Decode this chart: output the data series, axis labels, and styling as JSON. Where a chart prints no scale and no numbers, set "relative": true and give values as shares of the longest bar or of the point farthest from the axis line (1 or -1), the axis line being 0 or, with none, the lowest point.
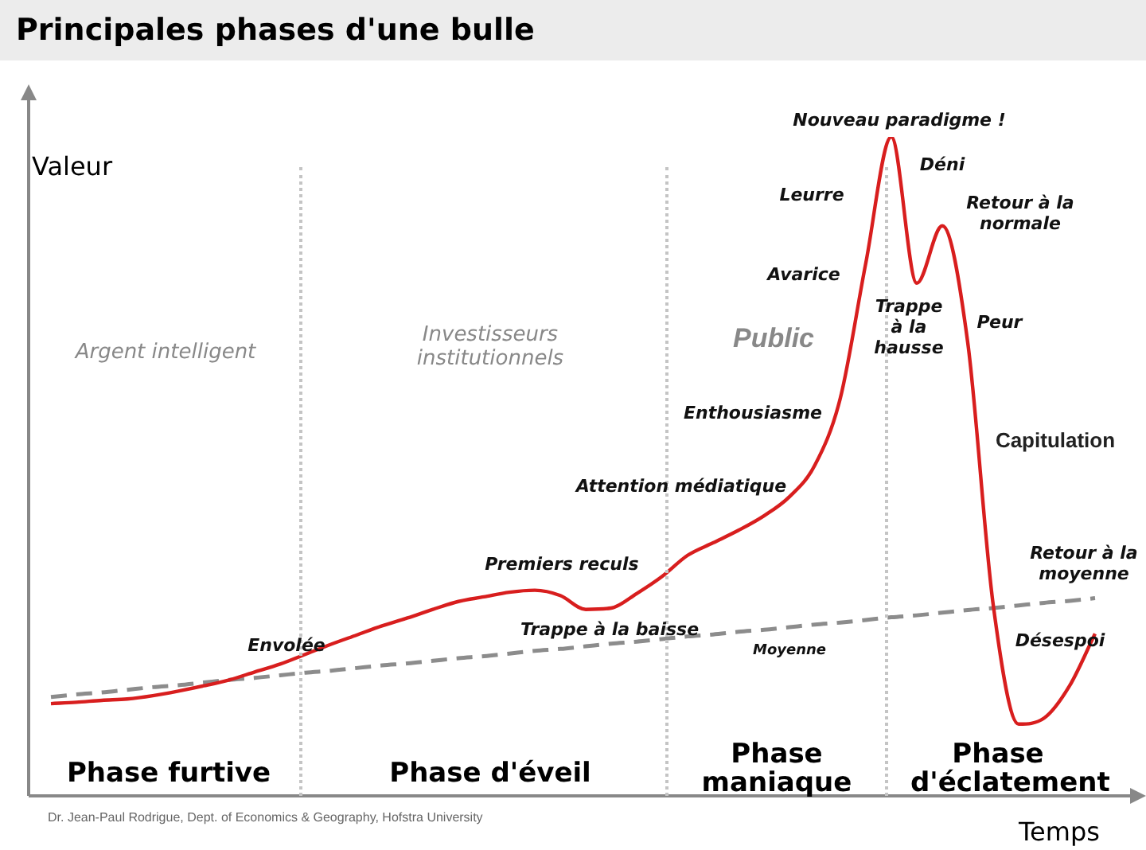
{
  "chart_data": {
    "type": "line",
    "title": "Principales phases d'une bulle",
    "xlabel": "Temps",
    "ylabel": "Valeur",
    "relative": true,
    "legend": false,
    "marker": "none",
    "categories": [
      null,
      null,
      null,
      null,
      null,
      null,
      null,
      null,
      null,
      null,
      null,
      null,
      null,
      null,
      null,
      null,
      null,
      null,
      null,
      null,
      null,
      null,
      null,
      null,
      null,
      null,
      null,
      null,
      null,
      null,
      null,
      null,
      null,
      null,
      null,
      null,
      null,
      null,
      null,
      null,
      null,
      null
    ],
    "series": [
      {
        "color": "#d81e1e",
        "line_style": "solid",
        "values": [
          0.14,
          0.142,
          0.145,
          0.147,
          0.152,
          0.159,
          0.167,
          0.176,
          0.188,
          0.2,
          0.215,
          0.23,
          0.244,
          0.258,
          0.27,
          0.283,
          0.295,
          0.302,
          0.309,
          0.312,
          0.304,
          0.283,
          0.285,
          0.307,
          0.333,
          0.365,
          0.384,
          0.403,
          0.425,
          0.454,
          0.502,
          0.604,
          0.809,
          1,
          0.778,
          0.865,
          0.688,
          0.29,
          0.109,
          0.118,
          0.167,
          0.246
        ]
      },
      {
        "name": "Moyenne",
        "color": "#8c8c8c",
        "line_style": "dashed",
        "values": [
          0.15,
          0.154,
          0.157,
          0.161,
          0.165,
          0.168,
          0.172,
          0.176,
          0.179,
          0.183,
          0.187,
          0.19,
          0.194,
          0.198,
          0.201,
          0.205,
          0.209,
          0.212,
          0.216,
          0.22,
          0.223,
          0.227,
          0.231,
          0.234,
          0.238,
          0.242,
          0.245,
          0.249,
          0.252,
          0.256,
          0.26,
          0.263,
          0.267,
          0.271,
          0.274,
          0.278,
          0.282,
          0.285,
          0.289,
          0.293,
          0.296,
          0.3
        ]
      }
    ],
    "annotations": [
      "Argent intelligent",
      "Investisseurs institutionnels",
      "Public",
      "Phase furtive",
      "Phase d'éveil",
      "Phase maniaque",
      "Phase d'éclatement",
      "Envolée",
      "Premiers reculs",
      "Trappe à la baisse",
      "Attention médiatique",
      "Enthousiasme",
      "Avarice",
      "Leurre",
      "Nouveau paradigme !",
      "Déni",
      "Trappe à la hausse",
      "Retour à la normale",
      "Peur",
      "Capitulation",
      "Désespoi",
      "Retour à la moyenne",
      "Dr. Jean-Paul Rodrigue, Dept. of Economics & Geography, Hofstra University"
    ]
  }
}
